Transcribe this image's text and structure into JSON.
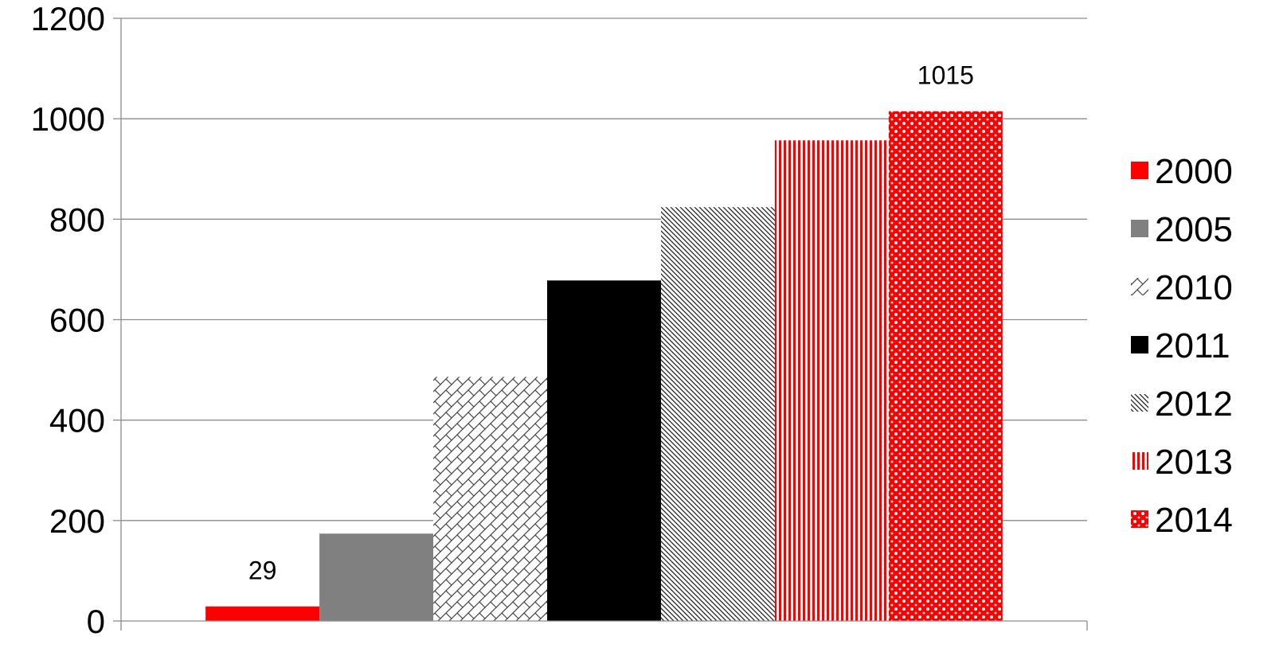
{
  "chart_data": {
    "type": "bar",
    "categories": [
      ""
    ],
    "series": [
      {
        "name": "2000",
        "values": [
          29
        ],
        "color": "#ff0000",
        "pattern": "solid",
        "data_label": "29"
      },
      {
        "name": "2005",
        "values": [
          174
        ],
        "color": "#808080",
        "pattern": "solid"
      },
      {
        "name": "2010",
        "values": [
          486
        ],
        "color": "#000000",
        "pattern": "diagonal-cross"
      },
      {
        "name": "2011",
        "values": [
          678
        ],
        "color": "#000000",
        "pattern": "solid"
      },
      {
        "name": "2012",
        "values": [
          824
        ],
        "color": "#000000",
        "pattern": "dense-diagonal"
      },
      {
        "name": "2013",
        "values": [
          957
        ],
        "color": "#ff0000",
        "pattern": "vertical-stripes"
      },
      {
        "name": "2014",
        "values": [
          1015
        ],
        "color": "#ff0000",
        "pattern": "dotted-grid",
        "data_label": "1015"
      }
    ],
    "ylim": [
      0,
      1200
    ],
    "yticks": [
      "0",
      "200",
      "400",
      "600",
      "800",
      "1000",
      "1200"
    ],
    "grid": true,
    "legend_position": "right",
    "title": "",
    "xlabel": "",
    "ylabel": ""
  }
}
